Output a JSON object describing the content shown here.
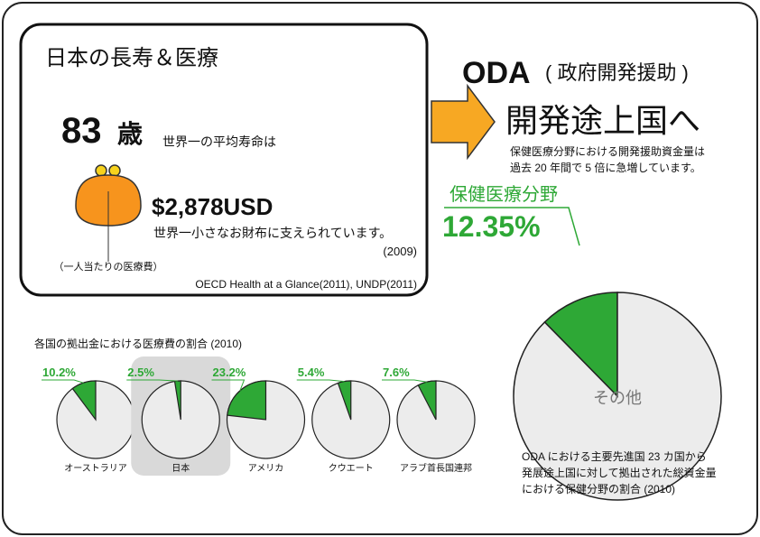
{
  "header": {
    "title": "日本の長寿＆医療"
  },
  "life": {
    "age": "83",
    "age_unit": "歳",
    "age_caption": "世界一の平均寿命は",
    "spending": "$2,878USD",
    "spending_caption": "世界一小さなお財布に支えられています。",
    "year": "(2009)",
    "wallet_label": "（一人当たりの医療費）",
    "source": "OECD Health at a Glance(2011), UNDP(2011)"
  },
  "oda": {
    "title": "ODA",
    "title_paren": "( 政府開発援助 )",
    "headline": "開発途上国へ",
    "description": [
      "保健医療分野における開発援助資金量は",
      "過去 20 年間で 5 倍に急増しています。"
    ]
  },
  "chart_data": [
    {
      "type": "pie",
      "categories": [
        "保健医療分野",
        "その他"
      ],
      "values": [
        12.35,
        87.65
      ],
      "value_labels": [
        "12.35%",
        null
      ],
      "colors": [
        "#2ea836",
        "#ececec"
      ],
      "caption": [
        "ODA における主要先進国 23 カ国から",
        "発展途上国に対して拠出された総資金量",
        "における保健分野の割合 (2010)"
      ]
    },
    {
      "type": "pie_multiples",
      "title": "各国の拠出金における医療費の割合 (2010)",
      "categories": [
        "オーストラリア",
        "日本",
        "アメリカ",
        "クウエート",
        "アラブ首長国連邦"
      ],
      "values": [
        10.2,
        2.5,
        23.2,
        5.4,
        7.6
      ],
      "value_labels": [
        "10.2%",
        "2.5%",
        "23.2%",
        "5.4%",
        "7.6%"
      ],
      "colors": [
        "#2ea836",
        "#ececec"
      ],
      "highlight_index": 1
    }
  ]
}
